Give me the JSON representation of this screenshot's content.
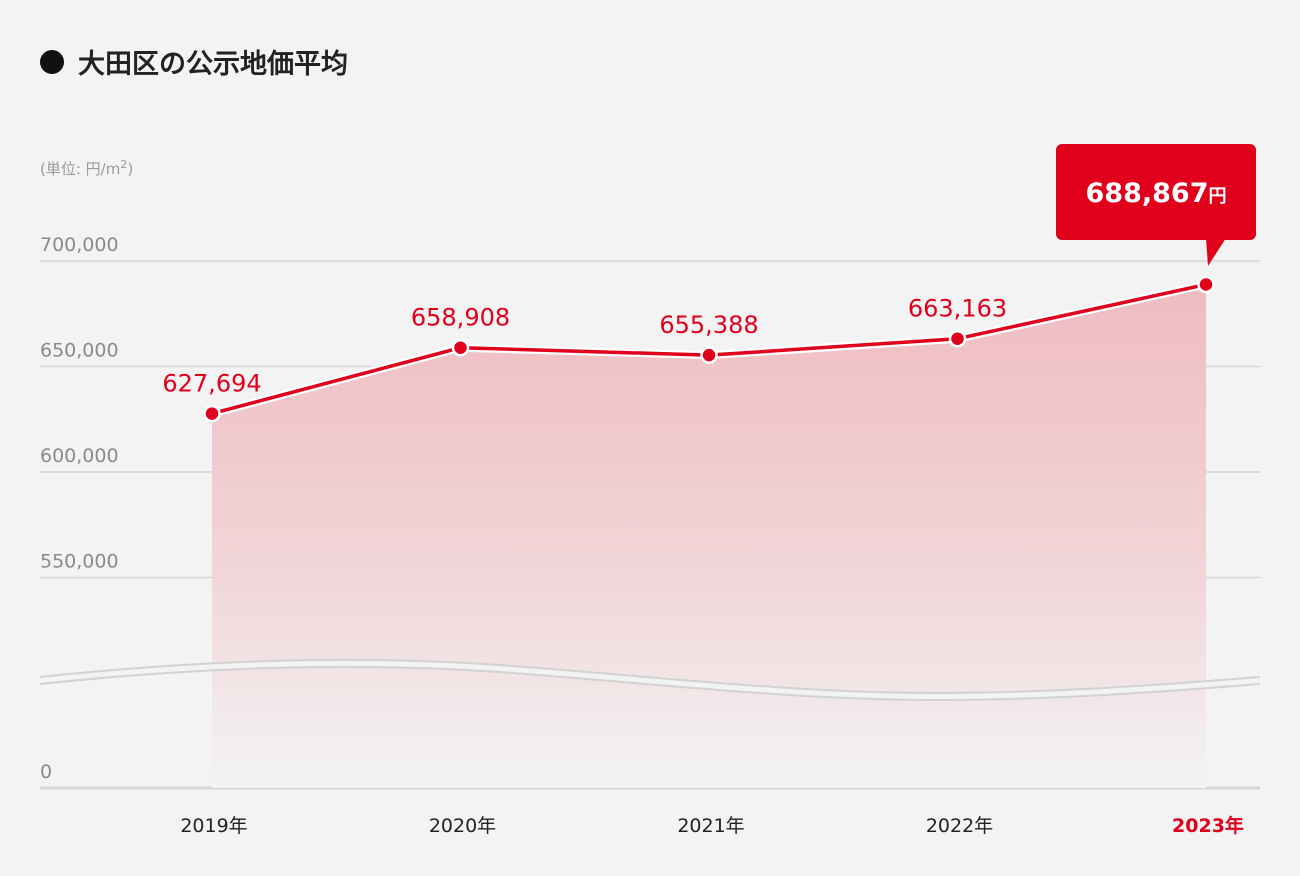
{
  "title": "大田区の公示地価平均",
  "unit_label": "(単位: 円/m",
  "unit_sup": "2",
  "unit_close": ")",
  "chart_data": {
    "type": "area",
    "title": "大田区の公示地価平均",
    "categories": [
      "2019年",
      "2020年",
      "2021年",
      "2022年",
      "2023年"
    ],
    "values": [
      627694,
      658908,
      655388,
      663163,
      688867
    ],
    "value_labels": [
      "627,694",
      "658,908",
      "655,388",
      "663,163",
      "688,867"
    ],
    "highlight_index": 4,
    "highlight_label": "688,867",
    "highlight_unit": "円",
    "y_ticks": [
      {
        "value": 700000,
        "label": "700,000"
      },
      {
        "value": 650000,
        "label": "650,000"
      },
      {
        "value": 600000,
        "label": "600,000"
      },
      {
        "value": 550000,
        "label": "550,000"
      },
      {
        "value": 0,
        "label": "0"
      }
    ],
    "ylim_upper": [
      550000,
      700000
    ],
    "axis_break": true,
    "grid": true,
    "colors": {
      "line": "#e0001b",
      "fill": "#efbcc0",
      "grid": "#d6d6d6",
      "tick_text": "#8a8a8a",
      "label_text": "#e0001b",
      "category_text": "#222222",
      "highlight_category": "#e0001b",
      "callout_bg": "#e0001b"
    }
  }
}
